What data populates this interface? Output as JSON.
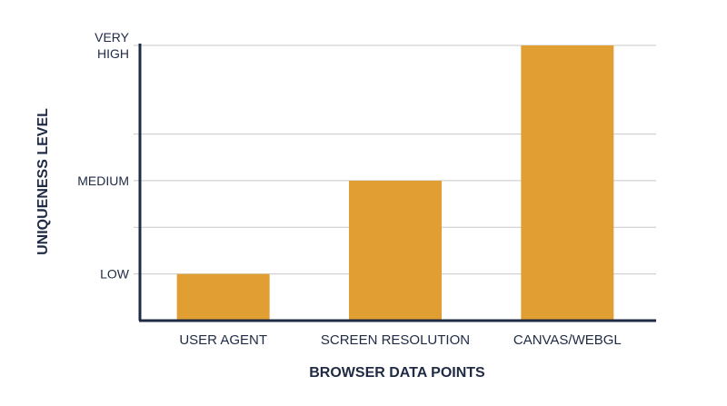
{
  "chart_data": {
    "type": "bar",
    "title": "",
    "xlabel": "BROWSER DATA POINTS",
    "ylabel": "UNIQUENESS LEVEL",
    "categories": [
      "USER AGENT",
      "SCREEN RESOLUTION",
      "CANVAS/WEBGL"
    ],
    "values": [
      1,
      3,
      5.9
    ],
    "ylim": [
      0,
      5.9
    ],
    "yticks": [
      {
        "value": 1,
        "lines": [
          "LOW"
        ]
      },
      {
        "value": 3,
        "lines": [
          "MEDIUM"
        ]
      },
      {
        "value": 5.9,
        "lines": [
          "VERY",
          "HIGH"
        ]
      }
    ],
    "gridlines": [
      1,
      2,
      3,
      4,
      5.9
    ],
    "grid": true,
    "legend": "none",
    "colors": {
      "bar": "#e19e32",
      "axis": "#1f2a44",
      "grid": "#c8c8c8",
      "text": "#1f2a44"
    }
  }
}
